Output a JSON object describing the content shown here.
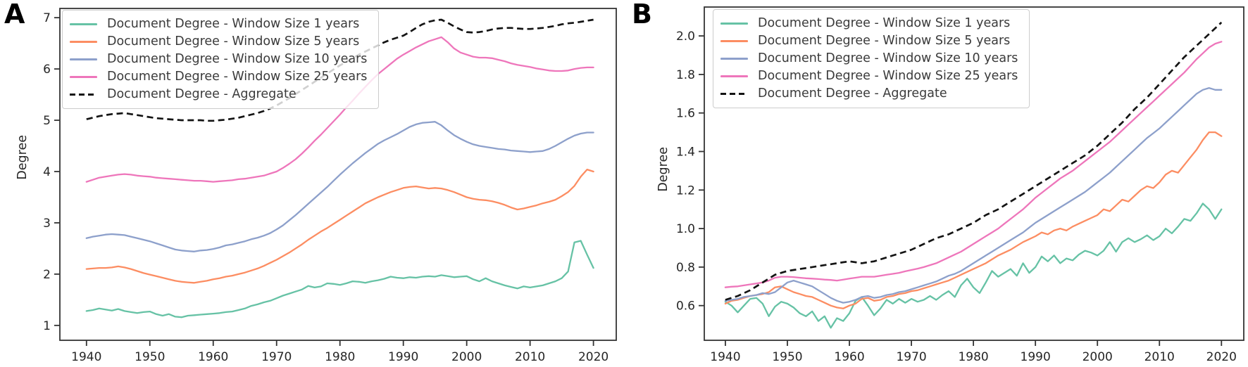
{
  "chart_data": [
    {
      "type": "line",
      "panel_label": "A",
      "ylabel": "Degree",
      "x_start": 1940,
      "x_step": 1,
      "xlim": [
        1935.8,
        2023.6
      ],
      "ylim": [
        0.71,
        7.18
      ],
      "xticks": [
        1940,
        1950,
        1960,
        1970,
        1980,
        1990,
        2000,
        2010,
        2020
      ],
      "xtick_labels": [
        "1940",
        "1950",
        "1960",
        "1970",
        "1980",
        "1990",
        "2000",
        "2010",
        "2020"
      ],
      "ytick_values": [
        1,
        2,
        3,
        4,
        5,
        6,
        7
      ],
      "ytick_labels": [
        "1",
        "2",
        "3",
        "4",
        "5",
        "6",
        "7"
      ],
      "grid": false,
      "legend_position": "upper-left",
      "series": [
        {
          "name": "Document Degree - Window Size 1 years",
          "color": "#66c2a5",
          "dash": false,
          "values": [
            1.28,
            1.3,
            1.33,
            1.31,
            1.29,
            1.32,
            1.28,
            1.26,
            1.24,
            1.26,
            1.27,
            1.22,
            1.19,
            1.22,
            1.17,
            1.16,
            1.19,
            1.2,
            1.21,
            1.22,
            1.23,
            1.24,
            1.26,
            1.27,
            1.3,
            1.33,
            1.38,
            1.41,
            1.45,
            1.48,
            1.53,
            1.58,
            1.62,
            1.66,
            1.7,
            1.77,
            1.74,
            1.76,
            1.82,
            1.81,
            1.79,
            1.82,
            1.86,
            1.85,
            1.83,
            1.86,
            1.88,
            1.91,
            1.95,
            1.93,
            1.92,
            1.94,
            1.93,
            1.95,
            1.96,
            1.95,
            1.98,
            1.96,
            1.94,
            1.95,
            1.96,
            1.9,
            1.86,
            1.92,
            1.86,
            1.82,
            1.78,
            1.75,
            1.72,
            1.76,
            1.74,
            1.76,
            1.78,
            1.82,
            1.86,
            1.92,
            2.05,
            2.62,
            2.65,
            2.38,
            2.12
          ]
        },
        {
          "name": "Document Degree - Window Size 5 years",
          "color": "#fc8d62",
          "dash": false,
          "values": [
            2.1,
            2.11,
            2.12,
            2.12,
            2.13,
            2.15,
            2.13,
            2.1,
            2.06,
            2.02,
            1.99,
            1.96,
            1.93,
            1.9,
            1.87,
            1.85,
            1.84,
            1.83,
            1.85,
            1.87,
            1.9,
            1.92,
            1.95,
            1.97,
            2.0,
            2.03,
            2.07,
            2.11,
            2.16,
            2.22,
            2.28,
            2.35,
            2.42,
            2.5,
            2.58,
            2.67,
            2.75,
            2.83,
            2.9,
            2.98,
            3.06,
            3.14,
            3.22,
            3.3,
            3.38,
            3.44,
            3.5,
            3.55,
            3.6,
            3.64,
            3.68,
            3.7,
            3.71,
            3.69,
            3.67,
            3.68,
            3.67,
            3.64,
            3.6,
            3.55,
            3.5,
            3.47,
            3.45,
            3.44,
            3.42,
            3.39,
            3.35,
            3.3,
            3.26,
            3.28,
            3.31,
            3.34,
            3.38,
            3.41,
            3.45,
            3.52,
            3.6,
            3.72,
            3.9,
            4.04,
            4.0
          ]
        },
        {
          "name": "Document Degree - Window Size 10 years",
          "color": "#8da0cb",
          "dash": false,
          "values": [
            2.7,
            2.73,
            2.75,
            2.77,
            2.78,
            2.77,
            2.76,
            2.73,
            2.7,
            2.67,
            2.64,
            2.6,
            2.56,
            2.52,
            2.48,
            2.46,
            2.45,
            2.44,
            2.46,
            2.47,
            2.49,
            2.52,
            2.56,
            2.58,
            2.61,
            2.64,
            2.68,
            2.71,
            2.75,
            2.8,
            2.87,
            2.95,
            3.05,
            3.15,
            3.26,
            3.37,
            3.48,
            3.59,
            3.7,
            3.82,
            3.94,
            4.05,
            4.16,
            4.26,
            4.36,
            4.45,
            4.54,
            4.61,
            4.67,
            4.73,
            4.8,
            4.87,
            4.92,
            4.95,
            4.96,
            4.97,
            4.9,
            4.8,
            4.71,
            4.64,
            4.58,
            4.53,
            4.5,
            4.48,
            4.46,
            4.44,
            4.43,
            4.41,
            4.4,
            4.39,
            4.38,
            4.39,
            4.4,
            4.44,
            4.5,
            4.57,
            4.64,
            4.7,
            4.74,
            4.76,
            4.76
          ]
        },
        {
          "name": "Document Degree - Window Size 25 years",
          "color": "#ee76bb",
          "dash": false,
          "values": [
            3.8,
            3.84,
            3.88,
            3.9,
            3.92,
            3.94,
            3.95,
            3.94,
            3.92,
            3.91,
            3.9,
            3.88,
            3.87,
            3.86,
            3.85,
            3.84,
            3.83,
            3.82,
            3.82,
            3.81,
            3.8,
            3.81,
            3.82,
            3.83,
            3.85,
            3.86,
            3.88,
            3.9,
            3.92,
            3.96,
            4.0,
            4.07,
            4.15,
            4.24,
            4.35,
            4.47,
            4.6,
            4.72,
            4.85,
            4.98,
            5.11,
            5.25,
            5.38,
            5.52,
            5.65,
            5.78,
            5.9,
            6.0,
            6.1,
            6.2,
            6.28,
            6.35,
            6.42,
            6.48,
            6.54,
            6.58,
            6.62,
            6.52,
            6.4,
            6.32,
            6.28,
            6.24,
            6.22,
            6.22,
            6.21,
            6.18,
            6.15,
            6.11,
            6.08,
            6.06,
            6.04,
            6.01,
            5.99,
            5.97,
            5.96,
            5.96,
            5.97,
            6.0,
            6.02,
            6.03,
            6.03
          ]
        },
        {
          "name": "Document Degree - Aggregate",
          "color": "#141414",
          "dash": true,
          "values": [
            5.02,
            5.05,
            5.08,
            5.1,
            5.12,
            5.13,
            5.14,
            5.12,
            5.1,
            5.08,
            5.06,
            5.04,
            5.03,
            5.02,
            5.01,
            5.0,
            5.0,
            5.0,
            5.0,
            4.99,
            4.99,
            5.0,
            5.01,
            5.03,
            5.05,
            5.08,
            5.11,
            5.14,
            5.18,
            5.23,
            5.29,
            5.36,
            5.43,
            5.51,
            5.59,
            5.67,
            5.75,
            5.83,
            5.91,
            5.99,
            6.07,
            6.14,
            6.21,
            6.28,
            6.34,
            6.4,
            6.46,
            6.52,
            6.57,
            6.61,
            6.65,
            6.72,
            6.8,
            6.87,
            6.92,
            6.95,
            6.96,
            6.9,
            6.83,
            6.77,
            6.72,
            6.71,
            6.72,
            6.74,
            6.77,
            6.79,
            6.8,
            6.8,
            6.79,
            6.78,
            6.78,
            6.79,
            6.8,
            6.82,
            6.84,
            6.87,
            6.89,
            6.9,
            6.92,
            6.94,
            6.96
          ]
        }
      ]
    },
    {
      "type": "line",
      "panel_label": "B",
      "ylabel": "Degree",
      "x_start": 1940,
      "x_step": 1,
      "xlim": [
        1936.6,
        2023.6
      ],
      "ylim": [
        0.42,
        2.15
      ],
      "xticks": [
        1940,
        1950,
        1960,
        1970,
        1980,
        1990,
        2000,
        2010,
        2020
      ],
      "xtick_labels": [
        "1940",
        "1950",
        "1960",
        "1970",
        "1980",
        "1990",
        "2000",
        "2010",
        "2020"
      ],
      "ytick_values": [
        0.6,
        0.8,
        1.0,
        1.2,
        1.4,
        1.6,
        1.8,
        2.0
      ],
      "ytick_labels": [
        "0.6",
        "0.8",
        "1.0",
        "1.2",
        "1.4",
        "1.6",
        "1.8",
        "2.0"
      ],
      "grid": false,
      "legend_position": "upper-left",
      "series": [
        {
          "name": "Document Degree - Window Size 1 years",
          "color": "#66c2a5",
          "dash": false,
          "values": [
            0.62,
            0.6,
            0.565,
            0.6,
            0.635,
            0.64,
            0.61,
            0.545,
            0.595,
            0.62,
            0.61,
            0.59,
            0.56,
            0.545,
            0.57,
            0.52,
            0.545,
            0.485,
            0.535,
            0.52,
            0.56,
            0.625,
            0.645,
            0.6,
            0.55,
            0.585,
            0.63,
            0.61,
            0.635,
            0.615,
            0.635,
            0.62,
            0.63,
            0.65,
            0.63,
            0.655,
            0.675,
            0.645,
            0.705,
            0.74,
            0.695,
            0.665,
            0.72,
            0.78,
            0.75,
            0.77,
            0.79,
            0.755,
            0.82,
            0.77,
            0.8,
            0.855,
            0.83,
            0.86,
            0.82,
            0.845,
            0.835,
            0.865,
            0.885,
            0.875,
            0.86,
            0.885,
            0.93,
            0.88,
            0.93,
            0.95,
            0.93,
            0.945,
            0.965,
            0.94,
            0.96,
            1.0,
            0.975,
            1.01,
            1.05,
            1.04,
            1.08,
            1.13,
            1.1,
            1.05,
            1.1
          ]
        },
        {
          "name": "Document Degree - Window Size 5 years",
          "color": "#fc8d62",
          "dash": false,
          "values": [
            0.61,
            0.625,
            0.63,
            0.64,
            0.65,
            0.655,
            0.66,
            0.67,
            0.695,
            0.7,
            0.685,
            0.67,
            0.66,
            0.65,
            0.645,
            0.63,
            0.615,
            0.6,
            0.59,
            0.585,
            0.6,
            0.61,
            0.635,
            0.64,
            0.625,
            0.63,
            0.645,
            0.65,
            0.66,
            0.665,
            0.675,
            0.68,
            0.69,
            0.7,
            0.71,
            0.72,
            0.73,
            0.745,
            0.76,
            0.775,
            0.79,
            0.805,
            0.82,
            0.84,
            0.86,
            0.875,
            0.89,
            0.91,
            0.93,
            0.945,
            0.96,
            0.98,
            0.97,
            0.99,
            1.0,
            0.99,
            1.01,
            1.025,
            1.04,
            1.055,
            1.07,
            1.1,
            1.09,
            1.12,
            1.15,
            1.14,
            1.17,
            1.2,
            1.22,
            1.21,
            1.24,
            1.28,
            1.3,
            1.29,
            1.33,
            1.37,
            1.41,
            1.46,
            1.5,
            1.5,
            1.48
          ]
        },
        {
          "name": "Document Degree - Window Size 10 years",
          "color": "#8da0cb",
          "dash": false,
          "values": [
            0.625,
            0.63,
            0.635,
            0.645,
            0.65,
            0.655,
            0.665,
            0.66,
            0.67,
            0.695,
            0.72,
            0.73,
            0.72,
            0.71,
            0.7,
            0.68,
            0.66,
            0.64,
            0.625,
            0.615,
            0.62,
            0.63,
            0.645,
            0.65,
            0.64,
            0.645,
            0.655,
            0.66,
            0.67,
            0.675,
            0.685,
            0.695,
            0.705,
            0.715,
            0.725,
            0.74,
            0.755,
            0.765,
            0.78,
            0.8,
            0.82,
            0.84,
            0.86,
            0.88,
            0.9,
            0.92,
            0.94,
            0.96,
            0.98,
            1.005,
            1.03,
            1.05,
            1.07,
            1.09,
            1.11,
            1.13,
            1.15,
            1.17,
            1.19,
            1.215,
            1.24,
            1.265,
            1.29,
            1.32,
            1.35,
            1.38,
            1.41,
            1.44,
            1.47,
            1.495,
            1.52,
            1.55,
            1.58,
            1.61,
            1.64,
            1.67,
            1.7,
            1.72,
            1.73,
            1.72,
            1.72
          ]
        },
        {
          "name": "Document Degree - Window Size 25 years",
          "color": "#ee76bb",
          "dash": false,
          "values": [
            0.695,
            0.698,
            0.7,
            0.705,
            0.71,
            0.715,
            0.72,
            0.73,
            0.745,
            0.75,
            0.75,
            0.748,
            0.745,
            0.742,
            0.74,
            0.738,
            0.735,
            0.733,
            0.73,
            0.735,
            0.74,
            0.745,
            0.75,
            0.75,
            0.75,
            0.755,
            0.76,
            0.765,
            0.77,
            0.778,
            0.785,
            0.792,
            0.8,
            0.81,
            0.82,
            0.835,
            0.85,
            0.865,
            0.88,
            0.9,
            0.92,
            0.94,
            0.96,
            0.98,
            1.0,
            1.025,
            1.05,
            1.075,
            1.1,
            1.13,
            1.16,
            1.185,
            1.21,
            1.235,
            1.26,
            1.28,
            1.3,
            1.325,
            1.35,
            1.375,
            1.4,
            1.425,
            1.45,
            1.48,
            1.51,
            1.54,
            1.57,
            1.6,
            1.63,
            1.66,
            1.69,
            1.72,
            1.75,
            1.78,
            1.81,
            1.845,
            1.88,
            1.91,
            1.94,
            1.96,
            1.97
          ]
        },
        {
          "name": "Document Degree - Aggregate",
          "color": "#141414",
          "dash": true,
          "values": [
            0.63,
            0.64,
            0.65,
            0.665,
            0.68,
            0.7,
            0.72,
            0.74,
            0.76,
            0.77,
            0.78,
            0.785,
            0.79,
            0.795,
            0.8,
            0.805,
            0.81,
            0.815,
            0.82,
            0.825,
            0.83,
            0.825,
            0.82,
            0.825,
            0.83,
            0.84,
            0.85,
            0.86,
            0.87,
            0.88,
            0.89,
            0.905,
            0.92,
            0.935,
            0.95,
            0.96,
            0.97,
            0.985,
            1.0,
            1.015,
            1.03,
            1.05,
            1.07,
            1.085,
            1.1,
            1.12,
            1.14,
            1.16,
            1.18,
            1.2,
            1.22,
            1.24,
            1.26,
            1.28,
            1.3,
            1.32,
            1.34,
            1.36,
            1.38,
            1.405,
            1.43,
            1.46,
            1.49,
            1.52,
            1.55,
            1.585,
            1.62,
            1.65,
            1.68,
            1.715,
            1.75,
            1.785,
            1.82,
            1.855,
            1.89,
            1.92,
            1.95,
            1.98,
            2.01,
            2.04,
            2.07
          ]
        }
      ]
    }
  ]
}
